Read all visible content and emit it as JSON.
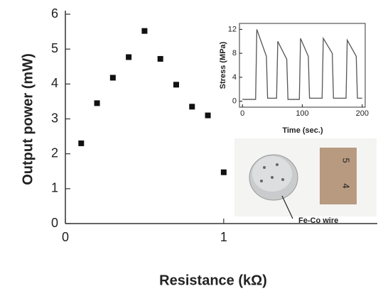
{
  "chart_data": [
    {
      "type": "scatter",
      "x_label": "Resistance (kΩ)",
      "y_label": "Output power (mW)",
      "x": [
        0.1,
        0.2,
        0.3,
        0.4,
        0.5,
        0.6,
        0.7,
        0.8,
        0.9,
        1.0
      ],
      "values": [
        2.3,
        3.45,
        4.18,
        4.77,
        5.52,
        4.72,
        3.98,
        3.35,
        3.1,
        1.47
      ],
      "color": "#111111",
      "xlim": [
        0,
        1.97
      ],
      "ylim": [
        0,
        6
      ],
      "xticks": [
        0,
        1
      ],
      "yticks": [
        0,
        1,
        2,
        3,
        4,
        5,
        6
      ],
      "annotations": [
        "Fe-Co wire",
        "5",
        "4"
      ]
    },
    {
      "type": "line",
      "x_label": "Time (sec.)",
      "y_label": "Stress (MPa)",
      "x": [
        0,
        22,
        24,
        40,
        42,
        57,
        59,
        74,
        76,
        95,
        97,
        110,
        112,
        133,
        135,
        150,
        152,
        173,
        175,
        190,
        192,
        200
      ],
      "values": [
        0.3,
        0.3,
        12,
        7.5,
        0.5,
        0.5,
        10,
        7,
        0.3,
        0.3,
        10.5,
        7.5,
        0.5,
        0.5,
        10.5,
        8,
        0.5,
        0.5,
        10.2,
        7.5,
        0.5,
        0.5
      ],
      "color": "#555555",
      "xlim": [
        -5,
        205
      ],
      "ylim": [
        -1,
        13
      ],
      "xticks": [
        0,
        100,
        200
      ],
      "yticks": [
        0,
        4,
        8,
        12
      ]
    }
  ]
}
